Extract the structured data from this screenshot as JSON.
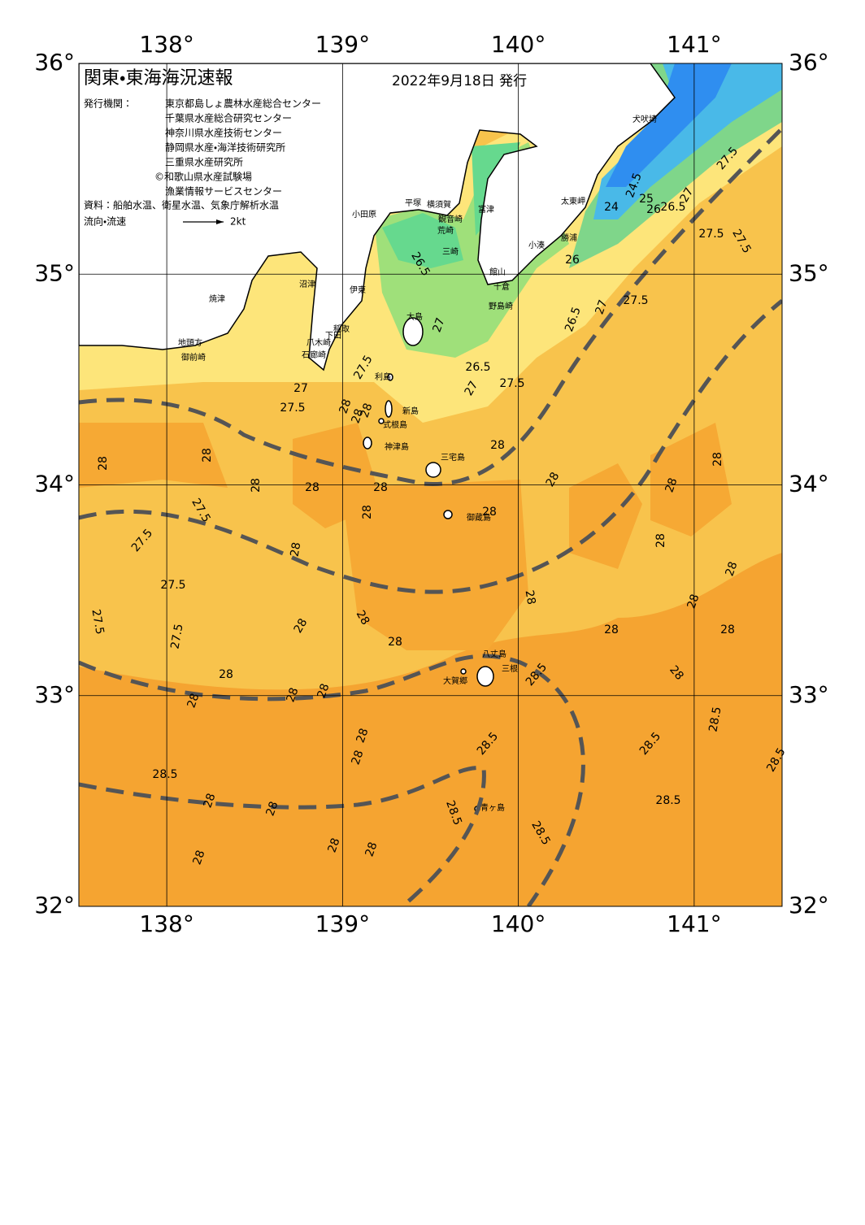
{
  "header": {
    "title": "関東・東海海況速報",
    "issue_date": "2022年9月18日 発行",
    "issuers_label": "発行機関：",
    "issuers": [
      "東京都島しょ農林水産総合センター",
      "千葉県水産総合研究センター",
      "神奈川県水産技術センター",
      "静岡県水産・海洋技術研究所",
      "三重県水産研究所",
      "©和歌山県水産試験場",
      "漁業情報サービスセンター"
    ],
    "sources": "資料：船舶水温、衛星水温、気象庁解析水温",
    "current_legend_label": "流向・流速",
    "current_legend_scale": "2kt"
  },
  "map": {
    "lon_range": [
      137.5,
      141.5
    ],
    "lat_range": [
      32,
      36
    ],
    "lon_ticks": [
      {
        "value": 138,
        "label": "138°"
      },
      {
        "value": 139,
        "label": "139°"
      },
      {
        "value": 140,
        "label": "140°"
      },
      {
        "value": 141,
        "label": "141°"
      }
    ],
    "lat_ticks": [
      {
        "value": 32,
        "label": "32°"
      },
      {
        "value": 33,
        "label": "33°"
      },
      {
        "value": 34,
        "label": "34°"
      },
      {
        "value": 35,
        "label": "35°"
      },
      {
        "value": 36,
        "label": "36°"
      }
    ],
    "place_names": [
      "犬吠埼",
      "太東岬",
      "勝浦",
      "小湊",
      "小田原",
      "平塚",
      "横須賀",
      "観音崎",
      "富津",
      "荒崎",
      "三崎",
      "館山",
      "千倉",
      "野島崎",
      "焼津",
      "沼津",
      "伊東",
      "稲取",
      "下田",
      "爪木崎",
      "石廊崎",
      "御前崎",
      "地頭方",
      "大島",
      "利島",
      "新島",
      "式根島",
      "神津島",
      "三宅島",
      "御蔵島",
      "八丈島",
      "三根",
      "大賀郷",
      "青ヶ島"
    ],
    "contour_labels": [
      27.5,
      27,
      27.5,
      26.5,
      27,
      26.5,
      27.5,
      27,
      26.5,
      27,
      27.5,
      27.5,
      27.5,
      27.5,
      24,
      24.5,
      25,
      26,
      26.5,
      27,
      26,
      28,
      28,
      28,
      28,
      28,
      28,
      28,
      28,
      28,
      28,
      28,
      28,
      28,
      28,
      28,
      28,
      28,
      28,
      28,
      28,
      28,
      28,
      28,
      28,
      28,
      28,
      28,
      28,
      28,
      28,
      28,
      28,
      28,
      28,
      28,
      28,
      27.5,
      27.5,
      27.5,
      27.5,
      27.5,
      28.5,
      28.5,
      28.5,
      28.5,
      28.5,
      28.5,
      28.5,
      28.5,
      28.5
    ]
  }
}
